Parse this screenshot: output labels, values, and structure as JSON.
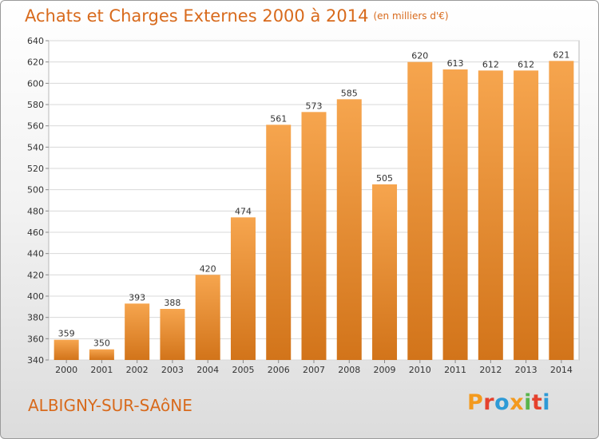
{
  "title": "Achats et Charges Externes 2000 à 2014",
  "unit": "(en milliers d'€)",
  "commune": "ALBIGNY-SUR-SAôNE",
  "brand": {
    "letters": [
      "P",
      "r",
      "o",
      "x",
      "i",
      "t",
      "i"
    ]
  },
  "colors": {
    "bar_light": "#f6a54e",
    "bar_dark": "#d2741a",
    "title": "#d86a1c",
    "brand_letters": [
      "#f39a1e",
      "#e5412d",
      "#2e9ad6",
      "#f39a1e",
      "#59b54c",
      "#e5412d",
      "#2e9ad6"
    ]
  },
  "chart_data": {
    "type": "bar",
    "categories": [
      "2000",
      "2001",
      "2002",
      "2003",
      "2004",
      "2005",
      "2006",
      "2007",
      "2008",
      "2009",
      "2010",
      "2011",
      "2012",
      "2013",
      "2014"
    ],
    "values": [
      359,
      350,
      393,
      388,
      420,
      474,
      561,
      573,
      585,
      505,
      620,
      613,
      612,
      612,
      621
    ],
    "ylim": [
      340,
      640
    ],
    "yticks": [
      340,
      360,
      380,
      400,
      420,
      440,
      460,
      480,
      500,
      520,
      540,
      560,
      580,
      600,
      620,
      640
    ],
    "grid": true,
    "legend": "none"
  }
}
